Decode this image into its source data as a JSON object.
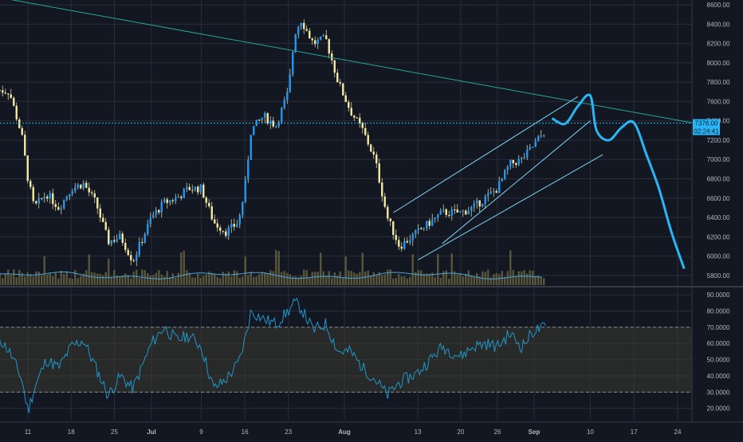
{
  "colors": {
    "background": "#131722",
    "grid": "#2a2e39",
    "candle_up": "#2196f3",
    "candle_down": "#f5e9a0",
    "wick": "#d8d2a6",
    "volume": "#6a6640",
    "volume_ma": "#4aa3d4",
    "trendline": "#26a69a",
    "channel": "#7ed2f0",
    "projection": "#29b6f6",
    "rsi_line": "#2196c9",
    "rsi_band": "#3a3a30",
    "axis_text": "#b2b5be",
    "price_tag": "#29b6f6"
  },
  "price_axis": {
    "ticks": [
      "8600.00",
      "8400.00",
      "8200.00",
      "8000.00",
      "7800.00",
      "7600.00",
      "7400.00",
      "7200.00",
      "7000.00",
      "6800.00",
      "6600.00",
      "6400.00",
      "6200.00",
      "6000.00",
      "5800.00"
    ],
    "current_price": "7376.00",
    "countdown": "02:24:41"
  },
  "rsi_axis": {
    "ticks": [
      "90.0000",
      "80.0000",
      "70.0000",
      "60.0000",
      "50.0000",
      "40.0000",
      "30.0000",
      "20.0000"
    ]
  },
  "time_axis": {
    "ticks": [
      "11",
      "18",
      "25",
      "Jul",
      "9",
      "16",
      "23",
      "Aug",
      "13",
      "20",
      "26",
      "Sep",
      "10",
      "17",
      "24"
    ]
  },
  "chart_data": [
    {
      "type": "candlestick",
      "y_axis_labels": [
        "8600.00",
        "8400.00",
        "8200.00",
        "8000.00",
        "7800.00",
        "7600.00",
        "7400.00",
        "7200.00",
        "7000.00",
        "6800.00",
        "6600.00",
        "6400.00",
        "6200.00",
        "6000.00",
        "5800.00"
      ],
      "ylim": [
        5700,
        8650
      ],
      "x_ticks": [
        "11",
        "18",
        "25",
        "Jul",
        "9",
        "16",
        "23",
        "Aug",
        "13",
        "20",
        "26",
        "Sep",
        "10",
        "17",
        "24"
      ],
      "close_path": [
        {
          "date": "Jun 6",
          "close": 7720
        },
        {
          "date": "Jun 8",
          "close": 7700
        },
        {
          "date": "Jun 10",
          "close": 7250
        },
        {
          "date": "Jun 11",
          "close": 6800
        },
        {
          "date": "Jun 12",
          "close": 6500
        },
        {
          "date": "Jun 14",
          "close": 6650
        },
        {
          "date": "Jun 16",
          "close": 6500
        },
        {
          "date": "Jun 18",
          "close": 6700
        },
        {
          "date": "Jun 20",
          "close": 6750
        },
        {
          "date": "Jun 22",
          "close": 6550
        },
        {
          "date": "Jun 24",
          "close": 6150
        },
        {
          "date": "Jun 26",
          "close": 6200
        },
        {
          "date": "Jun 28",
          "close": 5950
        },
        {
          "date": "Jul 1",
          "close": 6400
        },
        {
          "date": "Jul 3",
          "close": 6550
        },
        {
          "date": "Jul 5",
          "close": 6600
        },
        {
          "date": "Jul 7",
          "close": 6700
        },
        {
          "date": "Jul 9",
          "close": 6700
        },
        {
          "date": "Jul 11",
          "close": 6350
        },
        {
          "date": "Jul 13",
          "close": 6250
        },
        {
          "date": "Jul 15",
          "close": 6350
        },
        {
          "date": "Jul 16",
          "close": 6700
        },
        {
          "date": "Jul 17",
          "close": 7300
        },
        {
          "date": "Jul 19",
          "close": 7450
        },
        {
          "date": "Jul 21",
          "close": 7350
        },
        {
          "date": "Jul 23",
          "close": 7700
        },
        {
          "date": "Jul 24",
          "close": 8300
        },
        {
          "date": "Jul 25",
          "close": 8450
        },
        {
          "date": "Jul 27",
          "close": 8200
        },
        {
          "date": "Jul 29",
          "close": 8250
        },
        {
          "date": "Jul 31",
          "close": 7800
        },
        {
          "date": "Aug 2",
          "close": 7500
        },
        {
          "date": "Aug 4",
          "close": 7300
        },
        {
          "date": "Aug 6",
          "close": 7000
        },
        {
          "date": "Aug 8",
          "close": 6400
        },
        {
          "date": "Aug 10",
          "close": 6100
        },
        {
          "date": "Aug 13",
          "close": 6250
        },
        {
          "date": "Aug 15",
          "close": 6350
        },
        {
          "date": "Aug 17",
          "close": 6450
        },
        {
          "date": "Aug 20",
          "close": 6450
        },
        {
          "date": "Aug 22",
          "close": 6500
        },
        {
          "date": "Aug 24",
          "close": 6600
        },
        {
          "date": "Aug 26",
          "close": 6700
        },
        {
          "date": "Aug 28",
          "close": 6950
        },
        {
          "date": "Aug 30",
          "close": 7000
        },
        {
          "date": "Sep 1",
          "close": 7150
        },
        {
          "date": "Sep 3",
          "close": 7320
        }
      ],
      "resistance_line": {
        "from": {
          "date": "Jun 6",
          "value": 8680
        },
        "to": {
          "date": "Sep 28",
          "value": 7360
        }
      },
      "horizontal_line": 7376,
      "rising_channel": [
        {
          "from": {
            "date": "Aug 9",
            "value": 6450
          },
          "to": {
            "date": "Sep 8",
            "value": 7650
          }
        },
        {
          "from": {
            "date": "Aug 17",
            "value": 6130
          },
          "to": {
            "date": "Sep 10",
            "value": 7400
          }
        },
        {
          "from": {
            "date": "Aug 13",
            "value": 5960
          },
          "to": {
            "date": "Sep 12",
            "value": 7050
          }
        }
      ],
      "projection": [
        {
          "date": "Sep 4",
          "value": 7420
        },
        {
          "date": "Sep 6",
          "value": 7370
        },
        {
          "date": "Sep 8",
          "value": 7550
        },
        {
          "date": "Sep 10",
          "value": 7660
        },
        {
          "date": "Sep 11",
          "value": 7300
        },
        {
          "date": "Sep 13",
          "value": 7200
        },
        {
          "date": "Sep 15",
          "value": 7330
        },
        {
          "date": "Sep 17",
          "value": 7380
        },
        {
          "date": "Sep 19",
          "value": 7050
        },
        {
          "date": "Sep 21",
          "value": 6700
        },
        {
          "date": "Sep 23",
          "value": 6250
        },
        {
          "date": "Sep 25",
          "value": 5880
        }
      ],
      "grid": true
    },
    {
      "type": "line",
      "y_axis_labels": [
        "90.0000",
        "80.0000",
        "70.0000",
        "60.0000",
        "50.0000",
        "40.0000",
        "30.0000",
        "20.0000"
      ],
      "ylim": [
        13,
        93
      ],
      "band": [
        30,
        70
      ],
      "rsi": [
        {
          "date": "Jun 6",
          "value": 65
        },
        {
          "date": "Jun 8",
          "value": 55
        },
        {
          "date": "Jun 10",
          "value": 38
        },
        {
          "date": "Jun 11",
          "value": 18
        },
        {
          "date": "Jun 12",
          "value": 32
        },
        {
          "date": "Jun 14",
          "value": 50
        },
        {
          "date": "Jun 16",
          "value": 45
        },
        {
          "date": "Jun 18",
          "value": 58
        },
        {
          "date": "Jun 20",
          "value": 62
        },
        {
          "date": "Jun 22",
          "value": 45
        },
        {
          "date": "Jun 24",
          "value": 28
        },
        {
          "date": "Jun 26",
          "value": 40
        },
        {
          "date": "Jun 28",
          "value": 32
        },
        {
          "date": "Jul 1",
          "value": 60
        },
        {
          "date": "Jul 3",
          "value": 70
        },
        {
          "date": "Jul 5",
          "value": 62
        },
        {
          "date": "Jul 7",
          "value": 65
        },
        {
          "date": "Jul 9",
          "value": 58
        },
        {
          "date": "Jul 11",
          "value": 32
        },
        {
          "date": "Jul 13",
          "value": 38
        },
        {
          "date": "Jul 15",
          "value": 48
        },
        {
          "date": "Jul 16",
          "value": 62
        },
        {
          "date": "Jul 17",
          "value": 80
        },
        {
          "date": "Jul 19",
          "value": 75
        },
        {
          "date": "Jul 21",
          "value": 72
        },
        {
          "date": "Jul 23",
          "value": 80
        },
        {
          "date": "Jul 24",
          "value": 85
        },
        {
          "date": "Jul 25",
          "value": 82
        },
        {
          "date": "Jul 27",
          "value": 68
        },
        {
          "date": "Jul 29",
          "value": 72
        },
        {
          "date": "Jul 31",
          "value": 55
        },
        {
          "date": "Aug 2",
          "value": 55
        },
        {
          "date": "Aug 4",
          "value": 45
        },
        {
          "date": "Aug 6",
          "value": 38
        },
        {
          "date": "Aug 8",
          "value": 28
        },
        {
          "date": "Aug 10",
          "value": 36
        },
        {
          "date": "Aug 13",
          "value": 42
        },
        {
          "date": "Aug 15",
          "value": 50
        },
        {
          "date": "Aug 17",
          "value": 58
        },
        {
          "date": "Aug 20",
          "value": 52
        },
        {
          "date": "Aug 22",
          "value": 58
        },
        {
          "date": "Aug 24",
          "value": 60
        },
        {
          "date": "Aug 26",
          "value": 58
        },
        {
          "date": "Aug 28",
          "value": 66
        },
        {
          "date": "Aug 30",
          "value": 58
        },
        {
          "date": "Sep 1",
          "value": 68
        },
        {
          "date": "Sep 3",
          "value": 70
        }
      ]
    }
  ]
}
